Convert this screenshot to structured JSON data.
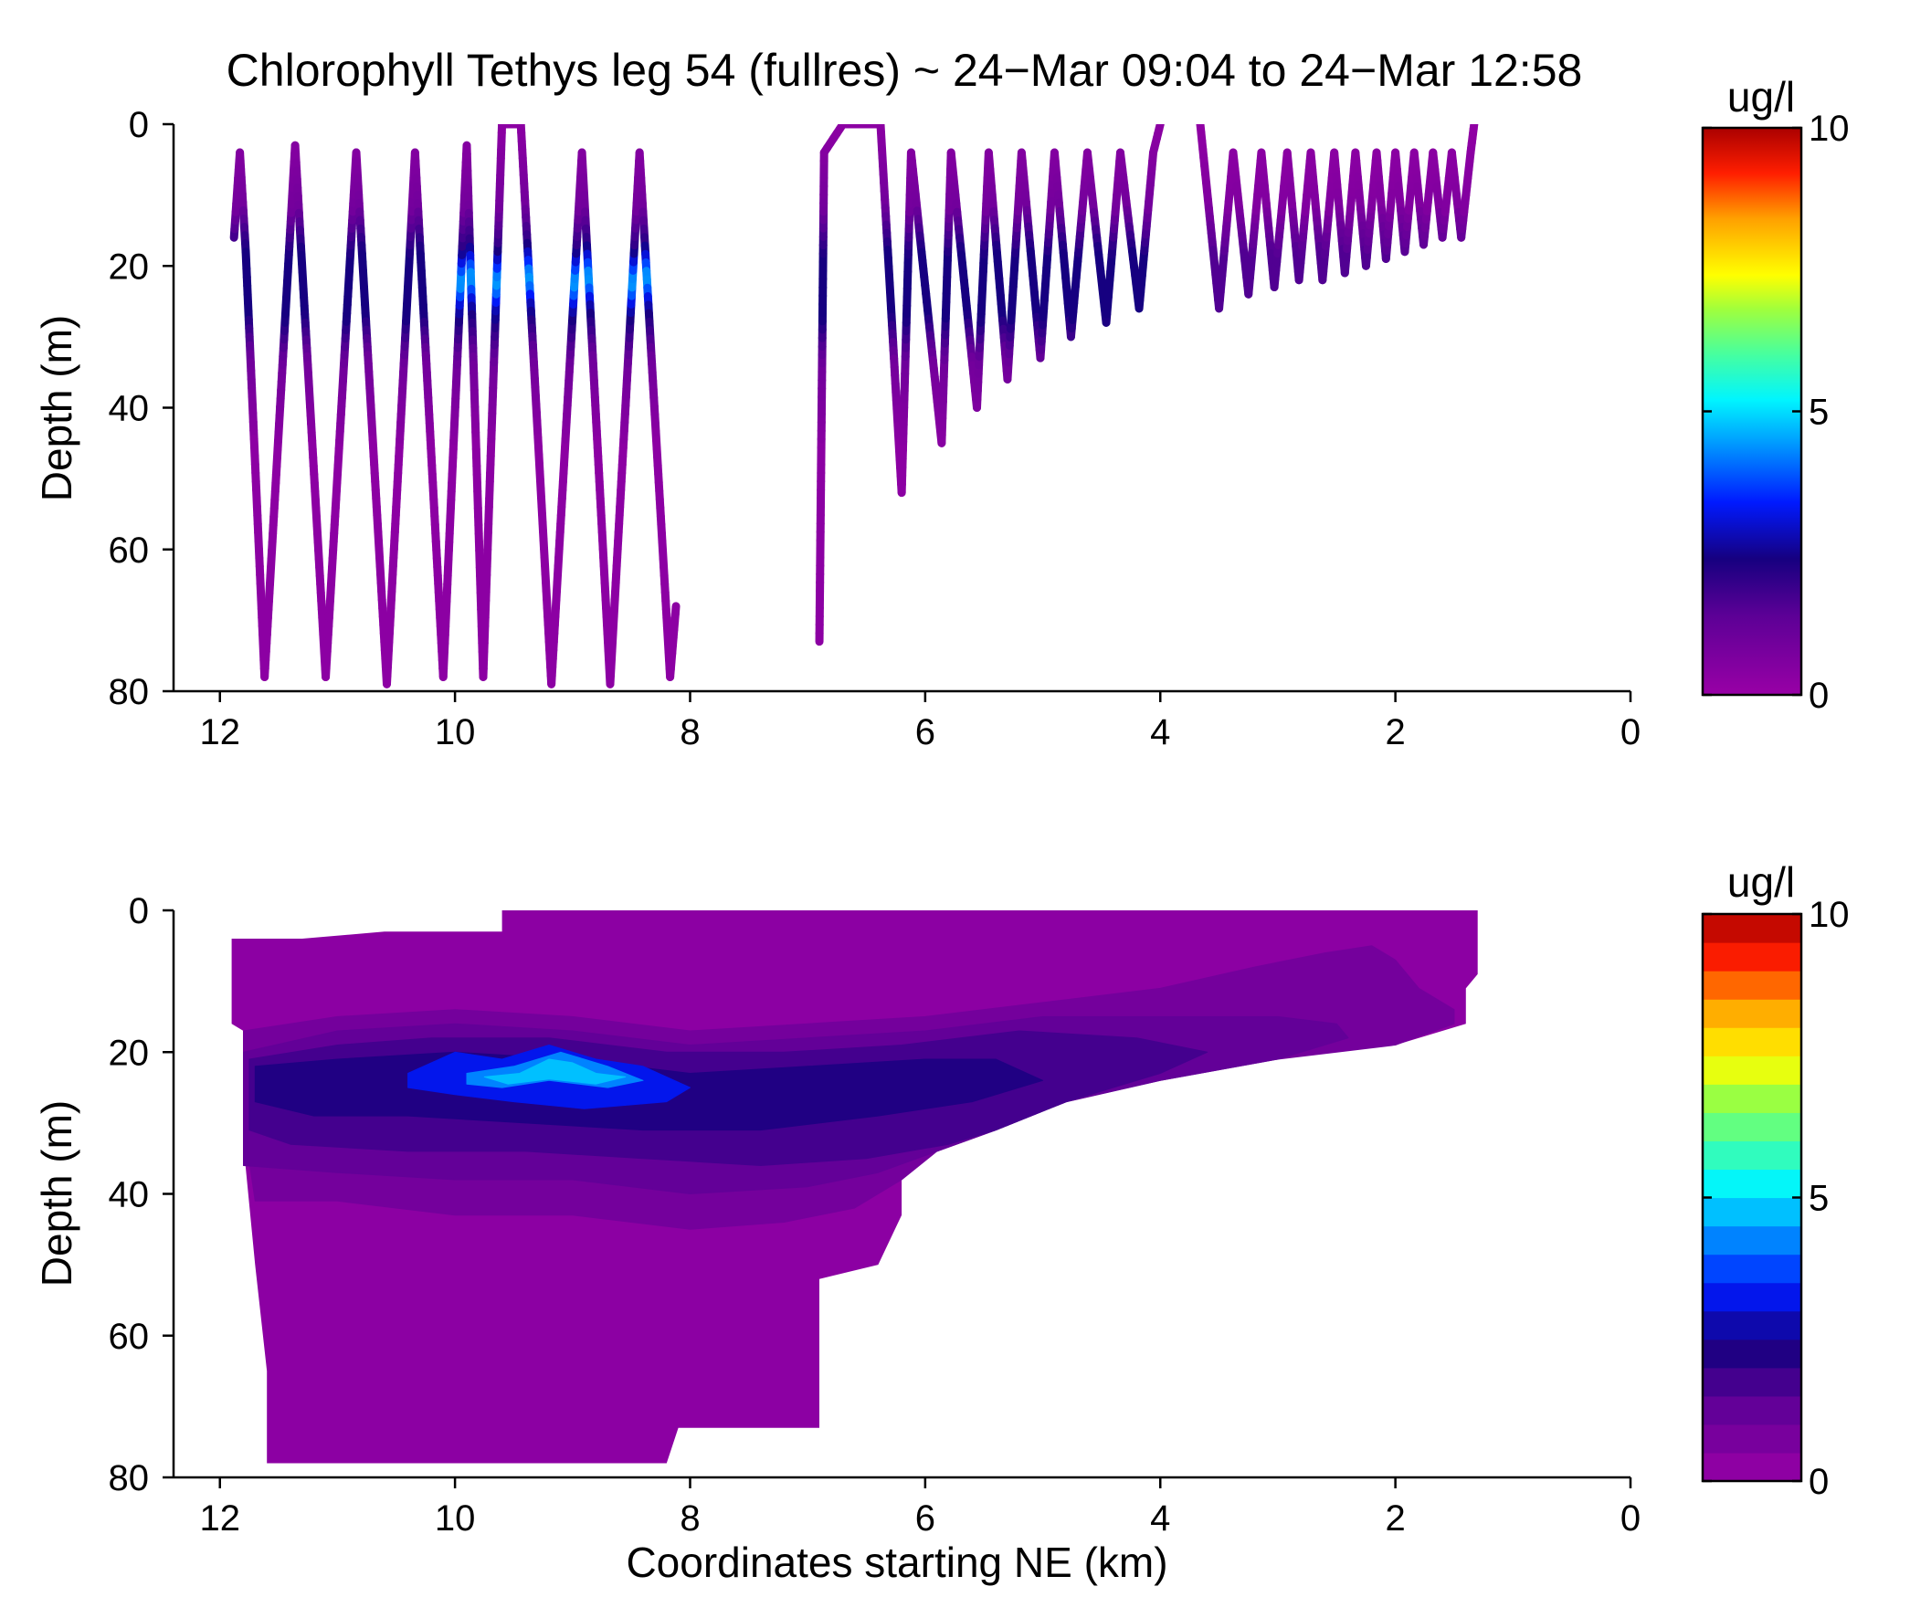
{
  "figure_title": "Chlorophyll Tethys leg 54 (fullres) ~ 24−Mar 09:04 to 24−Mar 12:58",
  "chart_data": [
    {
      "type": "line",
      "title": "Chlorophyll Tethys leg 54 (fullres) ~ 24−Mar 09:04 to 24−Mar 12:58",
      "xlabel": "",
      "ylabel": "Depth (m)",
      "xlim": [
        12.2,
        0
      ],
      "ylim": [
        0,
        80
      ],
      "y_inverted": true,
      "xticks": [
        "12",
        "10",
        "8",
        "6",
        "4",
        "2",
        "0"
      ],
      "xtick_values": [
        12,
        10,
        8,
        6,
        4,
        2,
        0
      ],
      "yticks": [
        "0",
        "20",
        "40",
        "60",
        "80"
      ],
      "ytick_values": [
        0,
        20,
        40,
        60,
        80
      ],
      "colorbar": {
        "label": "ug/l",
        "range": [
          0,
          10
        ],
        "ticks": [
          "0",
          "5",
          "10"
        ],
        "tick_values": [
          0,
          5,
          10
        ],
        "continuous": true
      },
      "series": [
        {
          "x": [
            11.88,
            11.83,
            11.78,
            11.62,
            11.36,
            11.1,
            10.84,
            10.58,
            10.34,
            10.1,
            9.9,
            9.76,
            9.6,
            9.44,
            9.18,
            8.92,
            8.68,
            8.43,
            8.17,
            8.12
          ],
          "y": [
            16,
            4,
            18,
            78,
            3,
            78,
            4,
            79,
            4,
            78,
            3,
            78,
            0,
            0,
            79,
            4,
            79,
            4,
            78,
            68
          ]
        },
        {
          "x": [
            6.9,
            6.86,
            6.7,
            6.38,
            6.2,
            6.12,
            5.86,
            5.78,
            5.56,
            5.46,
            5.3,
            5.18,
            5.02,
            4.9,
            4.76,
            4.62,
            4.46,
            4.34,
            4.18,
            4.06,
            4.0
          ],
          "y": [
            73,
            4,
            0,
            0,
            52,
            4,
            45,
            4,
            40,
            4,
            36,
            4,
            33,
            4,
            30,
            4,
            28,
            4,
            26,
            4,
            0
          ]
        },
        {
          "x": [
            3.66,
            3.5,
            3.38,
            3.25,
            3.14,
            3.03,
            2.92,
            2.82,
            2.72,
            2.62,
            2.52,
            2.43,
            2.34,
            2.25,
            2.16,
            2.08,
            2.0,
            1.92,
            1.84,
            1.76,
            1.68,
            1.6,
            1.52,
            1.44,
            1.36,
            1.33
          ],
          "y": [
            0,
            26,
            4,
            24,
            4,
            23,
            4,
            22,
            4,
            22,
            4,
            21,
            4,
            20,
            4,
            19,
            4,
            18,
            4,
            17,
            4,
            16,
            4,
            16,
            4,
            0
          ]
        }
      ]
    },
    {
      "type": "heatmap",
      "title": "",
      "xlabel": "Coordinates starting NE (km)",
      "ylabel": "Depth (m)",
      "xlim": [
        12.2,
        0
      ],
      "ylim": [
        0,
        80
      ],
      "y_inverted": true,
      "xticks": [
        "12",
        "10",
        "8",
        "6",
        "4",
        "2",
        "0"
      ],
      "xtick_values": [
        12,
        10,
        8,
        6,
        4,
        2,
        0
      ],
      "yticks": [
        "0",
        "20",
        "40",
        "60",
        "80"
      ],
      "ytick_values": [
        0,
        20,
        40,
        60,
        80
      ],
      "colorbar": {
        "label": "ug/l",
        "range": [
          0,
          10
        ],
        "ticks": [
          "0",
          "5",
          "10"
        ],
        "tick_values": [
          0,
          5,
          10
        ],
        "continuous": false,
        "levels": 20
      },
      "domain_outline": [
        [
          11.9,
          4
        ],
        [
          11.3,
          4
        ],
        [
          10.6,
          3
        ],
        [
          9.6,
          3
        ],
        [
          9.6,
          0
        ],
        [
          1.3,
          0
        ],
        [
          1.3,
          9
        ],
        [
          1.4,
          11
        ],
        [
          1.4,
          16
        ],
        [
          2.0,
          19
        ],
        [
          3.0,
          21
        ],
        [
          4.0,
          24
        ],
        [
          4.8,
          27
        ],
        [
          5.4,
          31
        ],
        [
          5.9,
          34
        ],
        [
          6.2,
          37
        ],
        [
          6.2,
          43
        ],
        [
          6.4,
          50
        ],
        [
          6.9,
          52
        ],
        [
          6.9,
          73
        ],
        [
          8.1,
          73
        ],
        [
          8.2,
          78
        ],
        [
          11.6,
          78
        ],
        [
          11.6,
          65
        ],
        [
          11.7,
          50
        ],
        [
          11.8,
          33
        ],
        [
          11.8,
          17
        ],
        [
          11.9,
          16
        ]
      ],
      "contours": [
        {
          "level": 0.6,
          "outline": [
            [
              11.8,
              17
            ],
            [
              11.0,
              15
            ],
            [
              10.0,
              14
            ],
            [
              9.0,
              15
            ],
            [
              8.0,
              17
            ],
            [
              7.0,
              16
            ],
            [
              6.0,
              15
            ],
            [
              5.0,
              13
            ],
            [
              4.0,
              11
            ],
            [
              3.2,
              8
            ],
            [
              2.6,
              6
            ],
            [
              2.2,
              5
            ],
            [
              2.0,
              7
            ],
            [
              1.8,
              11
            ],
            [
              1.5,
              14
            ],
            [
              1.5,
              16
            ],
            [
              2.0,
              19
            ],
            [
              3.0,
              21
            ],
            [
              4.0,
              24
            ],
            [
              4.8,
              27
            ],
            [
              5.4,
              31
            ],
            [
              5.9,
              34
            ],
            [
              6.2,
              38
            ],
            [
              6.6,
              42
            ],
            [
              7.2,
              44
            ],
            [
              8.0,
              45
            ],
            [
              9.0,
              43
            ],
            [
              10.0,
              43
            ],
            [
              11.0,
              41
            ],
            [
              11.7,
              41
            ],
            [
              11.8,
              30
            ]
          ]
        },
        {
          "level": 1.0,
          "outline": [
            [
              11.8,
              20
            ],
            [
              11.0,
              17
            ],
            [
              10.0,
              16
            ],
            [
              9.0,
              17
            ],
            [
              8.0,
              19
            ],
            [
              7.0,
              18
            ],
            [
              6.0,
              17
            ],
            [
              5.0,
              15
            ],
            [
              4.0,
              15
            ],
            [
              3.0,
              15
            ],
            [
              2.5,
              16
            ],
            [
              2.4,
              18
            ],
            [
              3.0,
              21
            ],
            [
              4.0,
              24
            ],
            [
              4.8,
              27
            ],
            [
              5.4,
              31
            ],
            [
              5.9,
              34
            ],
            [
              6.4,
              37
            ],
            [
              7.0,
              39
            ],
            [
              8.0,
              40
            ],
            [
              9.0,
              38
            ],
            [
              10.0,
              38
            ],
            [
              11.0,
              37
            ],
            [
              11.8,
              36
            ]
          ]
        },
        {
          "level": 1.5,
          "outline": [
            [
              11.75,
              21
            ],
            [
              11.0,
              19
            ],
            [
              10.2,
              18
            ],
            [
              9.2,
              18
            ],
            [
              8.2,
              20
            ],
            [
              7.2,
              20
            ],
            [
              6.2,
              19
            ],
            [
              5.2,
              17
            ],
            [
              4.2,
              18
            ],
            [
              3.6,
              20
            ],
            [
              4.0,
              23
            ],
            [
              4.8,
              27
            ],
            [
              5.4,
              31
            ],
            [
              5.8,
              33
            ],
            [
              6.5,
              35
            ],
            [
              7.4,
              36
            ],
            [
              8.4,
              35
            ],
            [
              9.4,
              34
            ],
            [
              10.4,
              34
            ],
            [
              11.4,
              33
            ],
            [
              11.75,
              31
            ]
          ]
        },
        {
          "level": 2.0,
          "outline": [
            [
              11.7,
              22
            ],
            [
              11.0,
              21
            ],
            [
              10.0,
              20
            ],
            [
              9.0,
              21
            ],
            [
              8.0,
              23
            ],
            [
              7.0,
              22
            ],
            [
              6.0,
              21
            ],
            [
              5.4,
              21
            ],
            [
              5.0,
              24
            ],
            [
              5.6,
              27
            ],
            [
              6.4,
              29
            ],
            [
              7.4,
              31
            ],
            [
              8.4,
              31
            ],
            [
              9.4,
              30
            ],
            [
              10.4,
              29
            ],
            [
              11.2,
              29
            ],
            [
              11.7,
              27
            ]
          ]
        },
        {
          "level": 3.0,
          "outline": [
            [
              10.4,
              23
            ],
            [
              10.0,
              20
            ],
            [
              9.6,
              21
            ],
            [
              9.2,
              19
            ],
            [
              8.8,
              21
            ],
            [
              8.4,
              22
            ],
            [
              8.0,
              25
            ],
            [
              8.2,
              27
            ],
            [
              8.9,
              28
            ],
            [
              9.5,
              27
            ],
            [
              10.0,
              26
            ],
            [
              10.4,
              25
            ]
          ]
        },
        {
          "level": 4.0,
          "outline": [
            [
              9.9,
              23
            ],
            [
              9.5,
              22
            ],
            [
              9.1,
              20
            ],
            [
              8.7,
              22
            ],
            [
              8.4,
              24
            ],
            [
              8.7,
              25
            ],
            [
              9.2,
              24
            ],
            [
              9.6,
              25
            ],
            [
              9.9,
              24.5
            ]
          ]
        },
        {
          "level": 4.5,
          "outline": [
            [
              9.75,
              23.5
            ],
            [
              9.45,
              23
            ],
            [
              9.2,
              21
            ],
            [
              9.0,
              21.5
            ],
            [
              8.8,
              23
            ],
            [
              8.55,
              23.5
            ],
            [
              8.8,
              24.5
            ],
            [
              9.2,
              23.8
            ],
            [
              9.55,
              24.5
            ]
          ]
        }
      ]
    }
  ]
}
